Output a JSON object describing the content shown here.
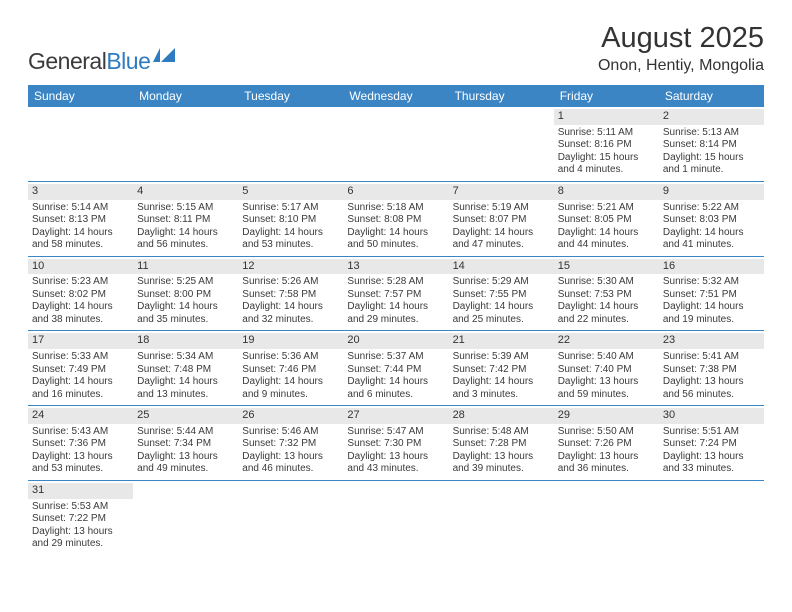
{
  "logo": {
    "text_dark": "General",
    "text_blue": "Blue"
  },
  "title": {
    "month": "August 2025",
    "location": "Onon, Hentiy, Mongolia"
  },
  "colors": {
    "header_bg": "#3b85c4",
    "daynum_bg": "#e8e8e8",
    "text": "#333333",
    "logo_blue": "#2f7bbf"
  },
  "weekdays": [
    "Sunday",
    "Monday",
    "Tuesday",
    "Wednesday",
    "Thursday",
    "Friday",
    "Saturday"
  ],
  "weeks": [
    [
      null,
      null,
      null,
      null,
      null,
      {
        "n": "1",
        "sr": "5:11 AM",
        "ss": "8:16 PM",
        "dl": "15 hours and 4 minutes."
      },
      {
        "n": "2",
        "sr": "5:13 AM",
        "ss": "8:14 PM",
        "dl": "15 hours and 1 minute."
      }
    ],
    [
      {
        "n": "3",
        "sr": "5:14 AM",
        "ss": "8:13 PM",
        "dl": "14 hours and 58 minutes."
      },
      {
        "n": "4",
        "sr": "5:15 AM",
        "ss": "8:11 PM",
        "dl": "14 hours and 56 minutes."
      },
      {
        "n": "5",
        "sr": "5:17 AM",
        "ss": "8:10 PM",
        "dl": "14 hours and 53 minutes."
      },
      {
        "n": "6",
        "sr": "5:18 AM",
        "ss": "8:08 PM",
        "dl": "14 hours and 50 minutes."
      },
      {
        "n": "7",
        "sr": "5:19 AM",
        "ss": "8:07 PM",
        "dl": "14 hours and 47 minutes."
      },
      {
        "n": "8",
        "sr": "5:21 AM",
        "ss": "8:05 PM",
        "dl": "14 hours and 44 minutes."
      },
      {
        "n": "9",
        "sr": "5:22 AM",
        "ss": "8:03 PM",
        "dl": "14 hours and 41 minutes."
      }
    ],
    [
      {
        "n": "10",
        "sr": "5:23 AM",
        "ss": "8:02 PM",
        "dl": "14 hours and 38 minutes."
      },
      {
        "n": "11",
        "sr": "5:25 AM",
        "ss": "8:00 PM",
        "dl": "14 hours and 35 minutes."
      },
      {
        "n": "12",
        "sr": "5:26 AM",
        "ss": "7:58 PM",
        "dl": "14 hours and 32 minutes."
      },
      {
        "n": "13",
        "sr": "5:28 AM",
        "ss": "7:57 PM",
        "dl": "14 hours and 29 minutes."
      },
      {
        "n": "14",
        "sr": "5:29 AM",
        "ss": "7:55 PM",
        "dl": "14 hours and 25 minutes."
      },
      {
        "n": "15",
        "sr": "5:30 AM",
        "ss": "7:53 PM",
        "dl": "14 hours and 22 minutes."
      },
      {
        "n": "16",
        "sr": "5:32 AM",
        "ss": "7:51 PM",
        "dl": "14 hours and 19 minutes."
      }
    ],
    [
      {
        "n": "17",
        "sr": "5:33 AM",
        "ss": "7:49 PM",
        "dl": "14 hours and 16 minutes."
      },
      {
        "n": "18",
        "sr": "5:34 AM",
        "ss": "7:48 PM",
        "dl": "14 hours and 13 minutes."
      },
      {
        "n": "19",
        "sr": "5:36 AM",
        "ss": "7:46 PM",
        "dl": "14 hours and 9 minutes."
      },
      {
        "n": "20",
        "sr": "5:37 AM",
        "ss": "7:44 PM",
        "dl": "14 hours and 6 minutes."
      },
      {
        "n": "21",
        "sr": "5:39 AM",
        "ss": "7:42 PM",
        "dl": "14 hours and 3 minutes."
      },
      {
        "n": "22",
        "sr": "5:40 AM",
        "ss": "7:40 PM",
        "dl": "13 hours and 59 minutes."
      },
      {
        "n": "23",
        "sr": "5:41 AM",
        "ss": "7:38 PM",
        "dl": "13 hours and 56 minutes."
      }
    ],
    [
      {
        "n": "24",
        "sr": "5:43 AM",
        "ss": "7:36 PM",
        "dl": "13 hours and 53 minutes."
      },
      {
        "n": "25",
        "sr": "5:44 AM",
        "ss": "7:34 PM",
        "dl": "13 hours and 49 minutes."
      },
      {
        "n": "26",
        "sr": "5:46 AM",
        "ss": "7:32 PM",
        "dl": "13 hours and 46 minutes."
      },
      {
        "n": "27",
        "sr": "5:47 AM",
        "ss": "7:30 PM",
        "dl": "13 hours and 43 minutes."
      },
      {
        "n": "28",
        "sr": "5:48 AM",
        "ss": "7:28 PM",
        "dl": "13 hours and 39 minutes."
      },
      {
        "n": "29",
        "sr": "5:50 AM",
        "ss": "7:26 PM",
        "dl": "13 hours and 36 minutes."
      },
      {
        "n": "30",
        "sr": "5:51 AM",
        "ss": "7:24 PM",
        "dl": "13 hours and 33 minutes."
      }
    ],
    [
      {
        "n": "31",
        "sr": "5:53 AM",
        "ss": "7:22 PM",
        "dl": "13 hours and 29 minutes."
      },
      null,
      null,
      null,
      null,
      null,
      null
    ]
  ],
  "labels": {
    "sunrise": "Sunrise: ",
    "sunset": "Sunset: ",
    "daylight": "Daylight: "
  }
}
